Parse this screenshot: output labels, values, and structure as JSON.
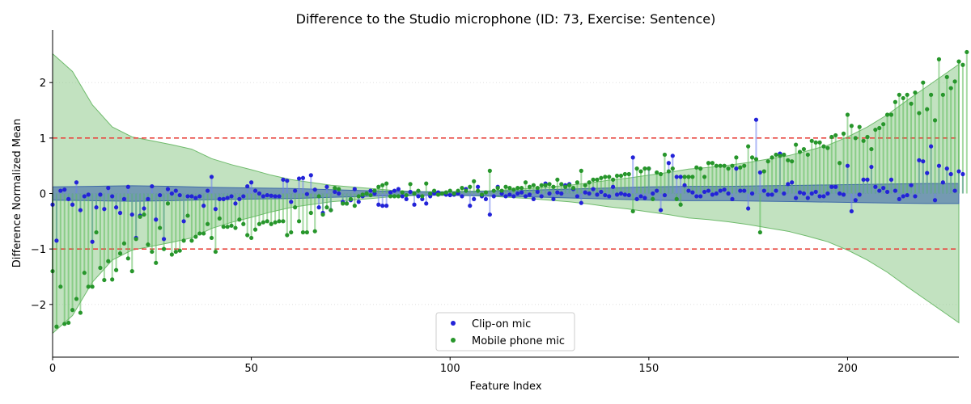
{
  "chart_data": {
    "type": "scatter",
    "title": "Difference to the Studio microphone (ID: 73, Exercise: Sentence)",
    "xlabel": "Feature Index",
    "ylabel": "Difference Normalized Mean",
    "xlim": [
      0,
      228
    ],
    "ylim": [
      -2.95,
      2.95
    ],
    "xticks": [
      0,
      50,
      100,
      150,
      200
    ],
    "yticks": [
      -2,
      -1,
      0,
      1,
      2
    ],
    "grid": "horizontal dotted",
    "legend_position": "lower-center",
    "threshold_lines": [
      -1,
      1
    ],
    "colors": {
      "clip_on": "#2323d8",
      "mobile": "#27962b",
      "clip_on_band": "#3f6aa8",
      "mobile_band": "#8fcb8d",
      "threshold": "#e8463f"
    },
    "bands": {
      "clip_on": {
        "x": [
          0,
          10,
          20,
          30,
          40,
          50,
          60,
          70,
          80,
          90,
          100,
          110,
          120,
          130,
          140,
          150,
          160,
          170,
          180,
          190,
          200,
          210,
          220,
          228
        ],
        "half_width": [
          0.12,
          0.13,
          0.14,
          0.13,
          0.11,
          0.1,
          0.09,
          0.07,
          0.05,
          0.03,
          0.03,
          0.04,
          0.06,
          0.08,
          0.1,
          0.12,
          0.13,
          0.13,
          0.14,
          0.15,
          0.16,
          0.17,
          0.18,
          0.18
        ]
      },
      "mobile": {
        "x": [
          0,
          5,
          10,
          15,
          20,
          25,
          30,
          35,
          40,
          45,
          50,
          55,
          60,
          65,
          70,
          75,
          80,
          85,
          90,
          95,
          100,
          105,
          110,
          115,
          120,
          125,
          130,
          135,
          140,
          145,
          150,
          155,
          160,
          165,
          170,
          175,
          180,
          185,
          190,
          195,
          200,
          205,
          210,
          215,
          220,
          225,
          228
        ],
        "upper": [
          2.52,
          2.2,
          1.6,
          1.2,
          1.02,
          0.95,
          0.88,
          0.8,
          0.63,
          0.52,
          0.43,
          0.33,
          0.25,
          0.2,
          0.15,
          0.12,
          0.09,
          0.06,
          0.04,
          0.03,
          0.03,
          0.04,
          0.05,
          0.07,
          0.09,
          0.12,
          0.15,
          0.19,
          0.24,
          0.28,
          0.33,
          0.38,
          0.44,
          0.47,
          0.51,
          0.56,
          0.62,
          0.68,
          0.77,
          0.87,
          1.02,
          1.2,
          1.42,
          1.68,
          1.93,
          2.18,
          2.33
        ],
        "lower": [
          -2.52,
          -2.2,
          -1.6,
          -1.2,
          -1.02,
          -0.95,
          -0.88,
          -0.8,
          -0.63,
          -0.52,
          -0.43,
          -0.33,
          -0.25,
          -0.2,
          -0.15,
          -0.12,
          -0.09,
          -0.06,
          -0.04,
          -0.03,
          -0.03,
          -0.04,
          -0.05,
          -0.07,
          -0.09,
          -0.12,
          -0.15,
          -0.19,
          -0.24,
          -0.28,
          -0.33,
          -0.38,
          -0.44,
          -0.47,
          -0.51,
          -0.56,
          -0.62,
          -0.68,
          -0.77,
          -0.87,
          -1.02,
          -1.2,
          -1.42,
          -1.68,
          -1.93,
          -2.18,
          -2.33
        ]
      }
    },
    "series": [
      {
        "name": "Clip-on mic",
        "x_start": 0,
        "values": [
          -0.2,
          -0.85,
          0.05,
          0.07,
          -0.1,
          -0.2,
          0.2,
          -0.3,
          -0.05,
          -0.02,
          -0.87,
          -0.25,
          -0.02,
          -0.28,
          0.1,
          -0.05,
          -0.25,
          -0.35,
          -0.1,
          0.12,
          -0.38,
          -0.8,
          -0.4,
          -0.27,
          -0.1,
          0.13,
          -0.47,
          -0.03,
          -0.82,
          0.08,
          0.0,
          0.05,
          -0.03,
          -0.5,
          -0.05,
          -0.05,
          -0.08,
          -0.05,
          -0.22,
          0.05,
          0.3,
          -0.28,
          -0.1,
          -0.1,
          -0.08,
          -0.05,
          -0.18,
          -0.1,
          -0.05,
          0.13,
          0.2,
          0.05,
          0.0,
          -0.05,
          -0.03,
          -0.04,
          -0.05,
          -0.05,
          0.25,
          0.23,
          -0.15,
          0.05,
          0.27,
          0.28,
          -0.01,
          0.33,
          0.07,
          -0.25,
          -0.35,
          0.12,
          -0.3,
          0.03,
          0.0,
          -0.15,
          -0.18,
          -0.12,
          0.08,
          -0.15,
          -0.05,
          0.0,
          0.05,
          0.0,
          -0.2,
          -0.22,
          -0.22,
          0.02,
          0.05,
          0.08,
          -0.05,
          -0.1,
          0.03,
          -0.2,
          -0.05,
          -0.1,
          -0.18,
          -0.05,
          0.0,
          0.02,
          0.0,
          -0.02,
          -0.03,
          -0.02,
          0.0,
          -0.05,
          0.08,
          -0.22,
          -0.1,
          0.12,
          -0.05,
          -0.1,
          -0.38,
          -0.05,
          0.12,
          0.0,
          -0.05,
          -0.02,
          -0.05,
          0.0,
          0.02,
          -0.05,
          -0.02,
          -0.1,
          0.03,
          -0.05,
          0.18,
          0.0,
          -0.1,
          0.02,
          0.0,
          0.15,
          0.17,
          0.08,
          -0.05,
          -0.17,
          0.02,
          0.0,
          0.08,
          -0.02,
          0.03,
          -0.03,
          -0.05,
          0.12,
          -0.02,
          0.0,
          -0.02,
          -0.03,
          0.65,
          -0.1,
          -0.05,
          -0.08,
          0.45,
          0.0,
          0.05,
          -0.3,
          -0.03,
          0.55,
          0.68,
          0.3,
          0.3,
          0.15,
          0.05,
          0.02,
          -0.05,
          -0.05,
          0.03,
          0.05,
          -0.02,
          0.0,
          0.05,
          0.07,
          0.0,
          -0.1,
          0.45,
          0.05,
          0.05,
          -0.27,
          0.0,
          1.33,
          0.38,
          0.05,
          -0.02,
          -0.02,
          0.05,
          0.72,
          0.0,
          0.17,
          0.2,
          -0.08,
          0.02,
          0.0,
          -0.08,
          0.0,
          0.03,
          -0.05,
          -0.05,
          0.0,
          0.12,
          0.12,
          0.0,
          -0.02,
          0.5,
          -0.32,
          -0.12,
          -0.02,
          0.25,
          0.25,
          0.48,
          0.12,
          0.05,
          0.1,
          0.03,
          0.25,
          0.05,
          -0.1,
          -0.05,
          -0.03,
          0.15,
          -0.05,
          0.6,
          0.58,
          0.37,
          0.85,
          -0.12,
          0.5,
          0.2,
          0.45,
          0.35,
          0.05,
          0.4,
          0.35
        ]
      },
      {
        "name": "Mobile phone mic",
        "x_start": 0,
        "values": [
          -1.4,
          -2.4,
          -1.68,
          -2.35,
          -2.33,
          -2.1,
          -1.9,
          -2.15,
          -1.43,
          -1.68,
          -1.68,
          -0.7,
          -1.34,
          -1.56,
          -1.22,
          -1.55,
          -1.38,
          -1.08,
          -0.9,
          -1.17,
          -1.4,
          -0.82,
          -0.42,
          -0.38,
          -0.92,
          -1.05,
          -1.25,
          -0.62,
          -1.0,
          -0.18,
          -1.1,
          -1.05,
          -1.03,
          -0.85,
          -0.4,
          -0.85,
          -0.78,
          -0.72,
          -0.72,
          -0.55,
          -0.8,
          -1.05,
          -0.45,
          -0.6,
          -0.6,
          -0.58,
          -0.62,
          -0.47,
          -0.55,
          -0.75,
          -0.8,
          -0.65,
          -0.55,
          -0.52,
          -0.5,
          -0.55,
          -0.52,
          -0.5,
          -0.5,
          -0.75,
          -0.7,
          -0.25,
          -0.5,
          -0.7,
          -0.7,
          -0.35,
          -0.68,
          -0.05,
          -0.38,
          -0.25,
          -0.3,
          0.1,
          0.08,
          -0.18,
          -0.18,
          -0.1,
          -0.22,
          -0.05,
          -0.02,
          0.0,
          -0.03,
          0.05,
          0.12,
          0.15,
          0.18,
          -0.05,
          -0.05,
          -0.05,
          0.02,
          -0.03,
          0.17,
          0.0,
          0.05,
          -0.05,
          0.18,
          0.0,
          0.05,
          -0.02,
          0.0,
          0.02,
          0.05,
          0.0,
          0.05,
          0.1,
          0.05,
          0.12,
          0.22,
          0.05,
          -0.02,
          0.02,
          0.41,
          0.05,
          0.1,
          0.05,
          0.12,
          0.1,
          0.07,
          0.1,
          0.1,
          0.2,
          0.12,
          0.15,
          0.1,
          0.15,
          0.15,
          0.17,
          0.12,
          0.25,
          0.17,
          0.12,
          0.15,
          0.1,
          0.2,
          0.41,
          0.15,
          0.2,
          0.25,
          0.25,
          0.28,
          0.3,
          0.3,
          0.25,
          0.32,
          0.32,
          0.35,
          0.35,
          -0.32,
          0.45,
          0.4,
          0.45,
          0.45,
          -0.1,
          0.38,
          0.35,
          0.7,
          0.4,
          0.45,
          -0.1,
          -0.2,
          0.3,
          0.3,
          0.3,
          0.47,
          0.45,
          0.3,
          0.55,
          0.55,
          0.5,
          0.5,
          0.5,
          0.45,
          0.5,
          0.65,
          0.47,
          0.5,
          0.85,
          0.65,
          0.62,
          -0.7,
          0.4,
          0.58,
          0.65,
          0.7,
          0.68,
          0.7,
          0.6,
          0.58,
          0.88,
          0.75,
          0.8,
          0.7,
          0.95,
          0.92,
          0.92,
          0.85,
          0.82,
          1.02,
          1.05,
          0.55,
          1.08,
          1.42,
          1.22,
          1.0,
          1.2,
          0.95,
          1.02,
          0.8,
          1.15,
          1.18,
          1.25,
          1.42,
          1.42,
          1.65,
          1.78,
          1.72,
          1.78,
          1.62,
          1.82,
          1.45,
          2.0,
          1.52,
          1.78,
          1.32,
          2.42,
          1.78,
          2.1,
          1.9,
          2.02,
          2.38,
          2.32,
          2.55
        ]
      }
    ]
  }
}
